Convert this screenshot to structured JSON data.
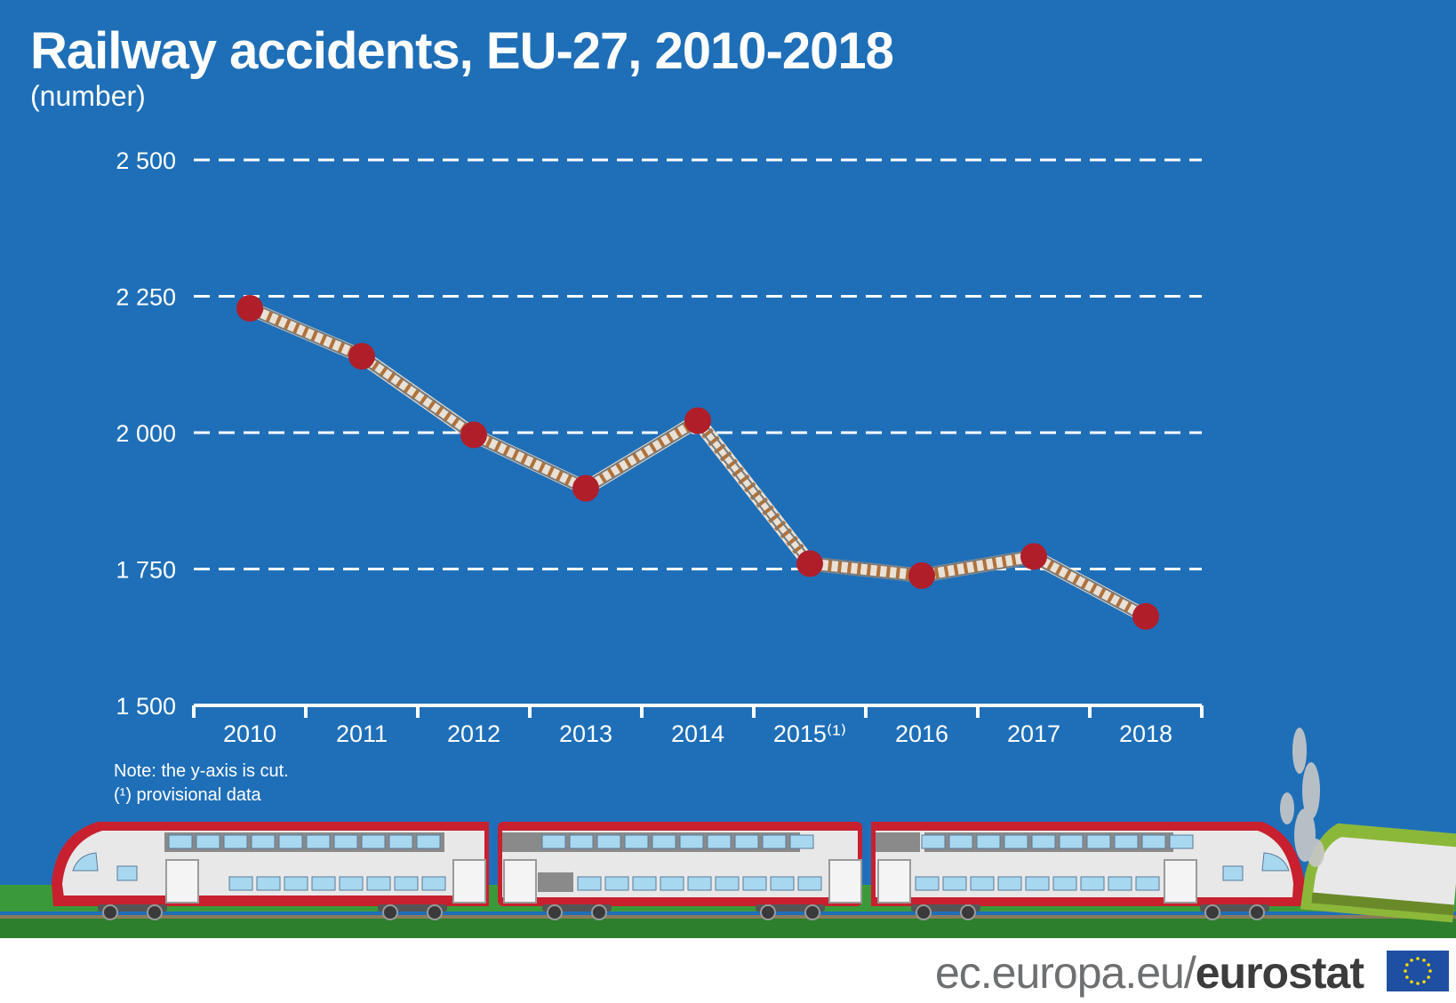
{
  "title": "Railway accidents, EU-27, 2010-2018",
  "subtitle": "(number)",
  "notes": {
    "line1": "Note: the y-axis is cut.",
    "marker": "(¹)",
    "line2": " provisional data"
  },
  "footer": {
    "domain": "ec.europa.eu/",
    "brand": "eurostat"
  },
  "colors": {
    "background": "#1f6fb8",
    "marker": "#b01e2a",
    "grid": "#ffffff",
    "track_tie": "#b0723a",
    "train_red": "#c8202e",
    "train_green": "#8cb83a",
    "ground": "#3a9a3a"
  },
  "chart_data": {
    "type": "line",
    "title": "Railway accidents, EU-27, 2010-2018",
    "subtitle": "(number)",
    "categories": [
      "2010",
      "2011",
      "2012",
      "2013",
      "2014",
      "2015",
      "2016",
      "2017",
      "2018"
    ],
    "category_labels": [
      "2010",
      "2011",
      "2012",
      "2013",
      "2014",
      "2015⁽¹⁾",
      "2016",
      "2017",
      "2018"
    ],
    "series": [
      {
        "values": [
          2228,
          2140,
          1996,
          1898,
          2022,
          1760,
          1738,
          1773,
          1663
        ]
      }
    ],
    "ylim": [
      1500,
      2500
    ],
    "yticks": [
      1500,
      1750,
      2000,
      2250,
      2500
    ],
    "ytick_labels": [
      "1 500",
      "1 750",
      "2 000",
      "2 250",
      "2 500"
    ],
    "grid": true,
    "xlabel": "",
    "ylabel": ""
  }
}
